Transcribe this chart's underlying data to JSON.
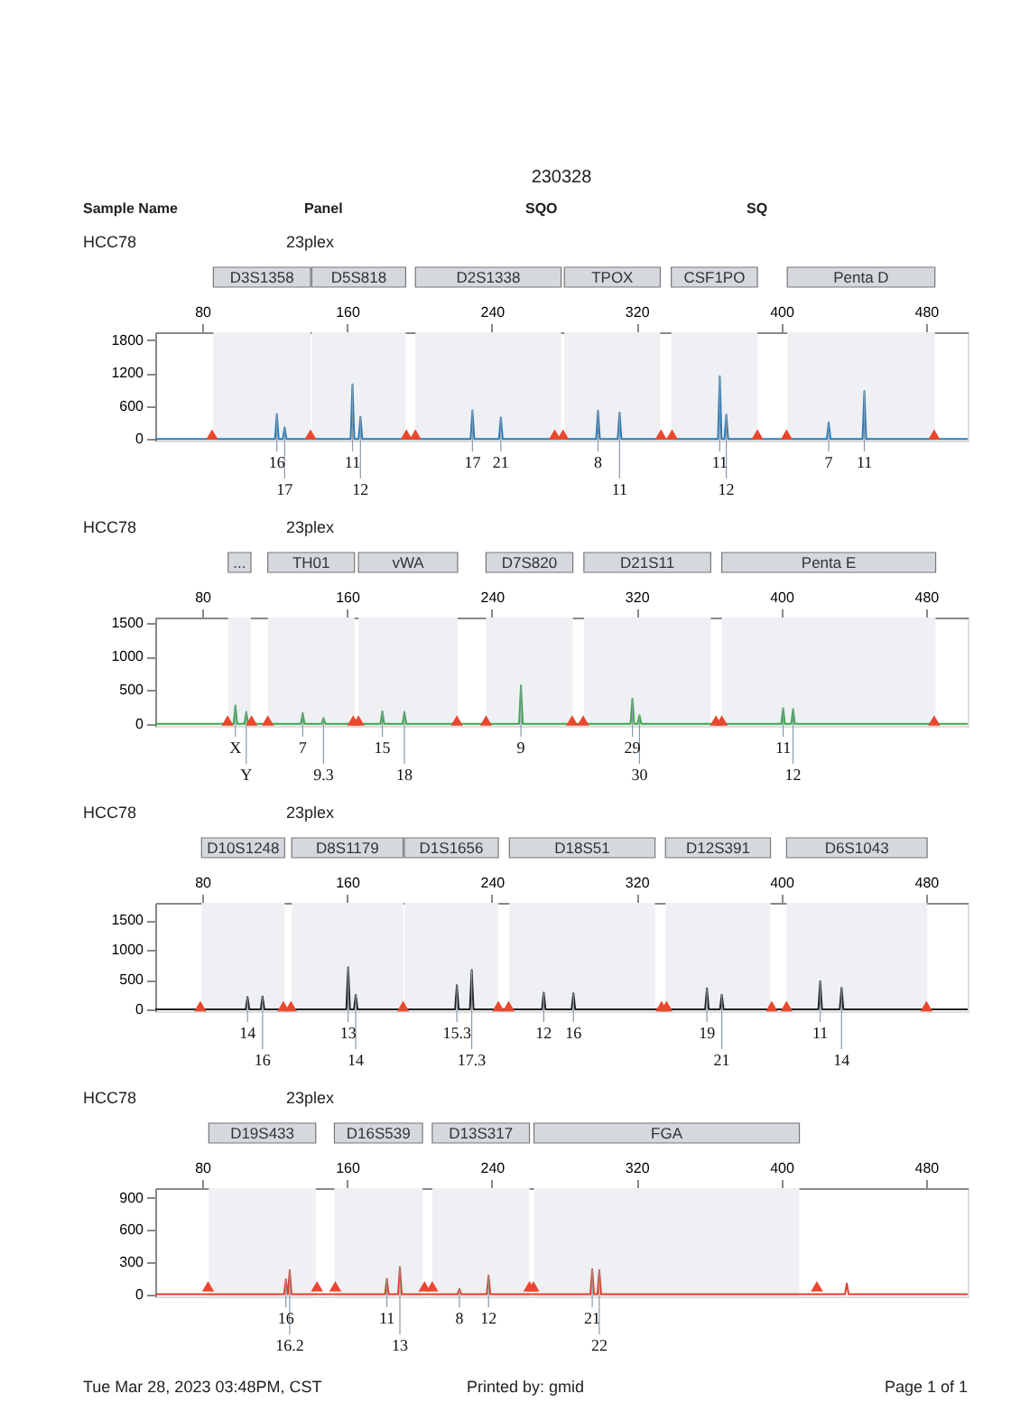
{
  "chart_data": [
    {
      "type": "line",
      "title": "HCC78",
      "subtitle": "23plex",
      "xlim": [
        54,
        503
      ],
      "xticks": [
        80,
        160,
        240,
        320,
        400,
        480
      ],
      "ylim": [
        -30,
        1940
      ],
      "yticks": [
        0,
        600,
        1200,
        1800
      ],
      "grid": false,
      "series": [
        {
          "color": "#2a7ab8",
          "x": [
            54,
            120.2,
            121.2,
            122.2,
            124.5,
            125.5,
            126.5,
            162,
            163,
            164,
            166.4,
            167.4,
            168.4,
            228.3,
            229.3,
            230.3,
            244,
            245,
            246,
            297.7,
            298.7,
            299.7,
            309.6,
            310.6,
            311.6,
            365,
            366,
            367,
            368.6,
            369.6,
            370.6,
            425.2,
            426.2,
            427.2,
            444.9,
            445.9,
            446.9,
            503
          ],
          "values": [
            0,
            0,
            450,
            0,
            0,
            210,
            0,
            0,
            990,
            0,
            0,
            400,
            0,
            0,
            520,
            0,
            0,
            390,
            0,
            0,
            510,
            0,
            0,
            480,
            0,
            0,
            1140,
            0,
            0,
            440,
            0,
            0,
            300,
            0,
            0,
            870,
            0,
            0
          ]
        },
        {
          "type": "scatter",
          "marker": "triangle",
          "color": "#e8482e",
          "x": [
            85.4,
            139.8,
            192.8,
            197.8,
            274.8,
            279.4,
            333.5,
            339.6,
            386.8,
            402.9,
            484.5
          ],
          "values": [
            80,
            80,
            80,
            80,
            80,
            80,
            80,
            80,
            80,
            80,
            80
          ]
        }
      ],
      "bands": [
        {
          "axis": "x",
          "from": 86.1,
          "to": 139.8,
          "label": "D3S1358",
          "color": "#eef0f3"
        },
        {
          "axis": "x",
          "from": 140.5,
          "to": 192.4,
          "label": "D5S818",
          "color": "#eef0f3"
        },
        {
          "axis": "x",
          "from": 197.8,
          "to": 278.3,
          "label": "D2S1338",
          "color": "#eef0f3"
        },
        {
          "axis": "x",
          "from": 280.1,
          "to": 333.1,
          "label": "TPOX",
          "color": "#eef0f3"
        },
        {
          "axis": "x",
          "from": 339.2,
          "to": 386.8,
          "label": "CSF1PO",
          "color": "#eef0f3"
        },
        {
          "axis": "x",
          "from": 403.3,
          "to": 484.9,
          "label": "Penta D",
          "color": "#eef0f3"
        }
      ],
      "annotations": [
        "230328",
        "Sample Name",
        "Panel",
        "SQO",
        "SQ",
        {
          "text": "16",
          "x": 121.2,
          "y": 450
        },
        {
          "text": "17",
          "x": 125.5,
          "y": 210
        },
        {
          "text": "11",
          "x": 163,
          "y": 990
        },
        {
          "text": "12",
          "x": 167.4,
          "y": 400
        },
        {
          "text": "17",
          "x": 229.3,
          "y": 520
        },
        {
          "text": "21",
          "x": 245,
          "y": 390
        },
        {
          "text": "8",
          "x": 298.7,
          "y": 510
        },
        {
          "text": "11",
          "x": 310.6,
          "y": 480
        },
        {
          "text": "11",
          "x": 366,
          "y": 1140
        },
        {
          "text": "12",
          "x": 369.6,
          "y": 440
        },
        {
          "text": "7",
          "x": 426.2,
          "y": 300
        },
        {
          "text": "11",
          "x": 445.9,
          "y": 870
        }
      ]
    },
    {
      "type": "line",
      "title": "HCC78",
      "subtitle": "23plex",
      "xlim": [
        54,
        503
      ],
      "xticks": [
        80,
        160,
        240,
        320,
        400,
        480
      ],
      "ylim": [
        -30,
        1580
      ],
      "yticks": [
        0,
        500,
        1000,
        1500
      ],
      "grid": false,
      "series": [
        {
          "color": "#3aa84a",
          "x": [
            54,
            97.3,
            98.3,
            99.3,
            103.3,
            104.3,
            105.3,
            134.5,
            135.5,
            136.5,
            146,
            147,
            148,
            178.5,
            179.5,
            180.5,
            190.7,
            191.7,
            192.7,
            255.1,
            256.1,
            257.1,
            316.7,
            317.7,
            318.7,
            320.6,
            321.6,
            322.6,
            400,
            401,
            402,
            405.5,
            406.5,
            407.5,
            503
          ],
          "values": [
            0,
            0,
            273,
            0,
            0,
            177,
            0,
            0,
            160,
            0,
            0,
            88,
            0,
            0,
            185,
            0,
            0,
            177,
            0,
            0,
            570,
            0,
            0,
            377,
            0,
            0,
            128,
            0,
            0,
            233,
            0,
            0,
            217,
            0,
            0
          ]
        },
        {
          "type": "scatter",
          "marker": "triangle",
          "color": "#e8482e",
          "x": [
            94,
            107.2,
            116.2,
            163.4,
            166.3,
            220.7,
            236.8,
            284.4,
            290.5,
            363.9,
            367.1,
            484.5
          ],
          "values": [
            50,
            50,
            50,
            50,
            50,
            50,
            50,
            50,
            50,
            50,
            50,
            50
          ]
        }
      ],
      "bands": [
        {
          "axis": "x",
          "from": 94.3,
          "to": 106.9,
          "label": "...",
          "color": "#eef0f3"
        },
        {
          "axis": "x",
          "from": 116.2,
          "to": 164.1,
          "label": "TH01",
          "color": "#eef0f3"
        },
        {
          "axis": "x",
          "from": 166.3,
          "to": 221.1,
          "label": "vWA",
          "color": "#eef0f3"
        },
        {
          "axis": "x",
          "from": 236.8,
          "to": 284.8,
          "label": "D7S820",
          "color": "#eef0f3"
        },
        {
          "axis": "x",
          "from": 290.9,
          "to": 361,
          "label": "D21S11",
          "color": "#eef0f3"
        },
        {
          "axis": "x",
          "from": 367.1,
          "to": 485.3,
          "label": "Penta E",
          "color": "#eef0f3"
        }
      ],
      "annotations": [
        {
          "text": "X",
          "x": 98.3,
          "y": 273
        },
        {
          "text": "Y",
          "x": 104.3,
          "y": 177
        },
        {
          "text": "7",
          "x": 135.5,
          "y": 160
        },
        {
          "text": "9.3",
          "x": 147,
          "y": 88
        },
        {
          "text": "15",
          "x": 179.5,
          "y": 185
        },
        {
          "text": "18",
          "x": 191.7,
          "y": 177
        },
        {
          "text": "9",
          "x": 256.1,
          "y": 570
        },
        {
          "text": "29",
          "x": 317.7,
          "y": 377
        },
        {
          "text": "30",
          "x": 321.6,
          "y": 128
        },
        {
          "text": "11",
          "x": 401,
          "y": 233
        },
        {
          "text": "12",
          "x": 406.5,
          "y": 217
        }
      ]
    },
    {
      "type": "line",
      "title": "HCC78",
      "subtitle": "23plex",
      "xlim": [
        54,
        503
      ],
      "xticks": [
        80,
        160,
        240,
        320,
        400,
        480
      ],
      "ylim": [
        -30,
        1790
      ],
      "yticks": [
        0,
        500,
        1000,
        1500
      ],
      "grid": false,
      "series": [
        {
          "color": "#222222",
          "x": [
            54,
            104,
            105,
            106,
            112.3,
            113.3,
            114.3,
            159.6,
            160.6,
            161.6,
            163.8,
            164.8,
            165.8,
            219.7,
            220.7,
            221.7,
            227.9,
            228.9,
            229.9,
            267.7,
            268.7,
            269.7,
            284.1,
            285.1,
            286.1,
            357.9,
            358.9,
            359.9,
            366.1,
            367.1,
            368.1,
            420.5,
            421.5,
            422.5,
            432.3,
            433.3,
            434.3,
            503
          ],
          "values": [
            0,
            0,
            208,
            0,
            0,
            217,
            0,
            0,
            705,
            0,
            0,
            244,
            0,
            0,
            407,
            0,
            0,
            660,
            0,
            0,
            280,
            0,
            0,
            271,
            0,
            0,
            353,
            0,
            0,
            244,
            0,
            0,
            470,
            0,
            0,
            362,
            0,
            0
          ]
        },
        {
          "type": "scatter",
          "marker": "triangle",
          "color": "#e8482e",
          "x": [
            78.9,
            124.8,
            129,
            191,
            243.6,
            249.3,
            333.8,
            336.6,
            394.7,
            402.9,
            480.2
          ],
          "values": [
            55,
            55,
            55,
            55,
            55,
            55,
            55,
            55,
            55,
            55,
            55
          ]
        }
      ],
      "bands": [
        {
          "axis": "x",
          "from": 79.6,
          "to": 125.5,
          "label": "D10S1248",
          "color": "#eef0f3"
        },
        {
          "axis": "x",
          "from": 129.4,
          "to": 191,
          "label": "D8S1179",
          "color": "#eef0f3"
        },
        {
          "axis": "x",
          "from": 191.7,
          "to": 243.6,
          "label": "D1S1656",
          "color": "#eef0f3"
        },
        {
          "axis": "x",
          "from": 249.7,
          "to": 330.2,
          "label": "D18S51",
          "color": "#eef0f3"
        },
        {
          "axis": "x",
          "from": 336,
          "to": 394,
          "label": "D12S391",
          "color": "#eef0f3"
        },
        {
          "axis": "x",
          "from": 402.9,
          "to": 480.6,
          "label": "D6S1043",
          "color": "#eef0f3"
        }
      ],
      "annotations": [
        {
          "text": "14",
          "x": 105,
          "y": 208
        },
        {
          "text": "16",
          "x": 113.3,
          "y": 217
        },
        {
          "text": "13",
          "x": 160.6,
          "y": 705
        },
        {
          "text": "14",
          "x": 164.8,
          "y": 244
        },
        {
          "text": "15.3",
          "x": 220.7,
          "y": 407
        },
        {
          "text": "17.3",
          "x": 228.9,
          "y": 660
        },
        {
          "text": "12",
          "x": 268.7,
          "y": 280
        },
        {
          "text": "16",
          "x": 285.1,
          "y": 271
        },
        {
          "text": "19",
          "x": 358.9,
          "y": 353
        },
        {
          "text": "21",
          "x": 367.1,
          "y": 244
        },
        {
          "text": "11",
          "x": 421.5,
          "y": 470
        },
        {
          "text": "14",
          "x": 433.3,
          "y": 362
        }
      ]
    },
    {
      "type": "line",
      "title": "HCC78",
      "subtitle": "23plex",
      "xlim": [
        54,
        503
      ],
      "xticks": [
        80,
        160,
        240,
        320,
        400,
        480
      ],
      "ylim": [
        -20,
        990
      ],
      "yticks": [
        0,
        300,
        600,
        900
      ],
      "grid": false,
      "series": [
        {
          "color": "#e0402a",
          "x": [
            54,
            125.2,
            126.2,
            127.2,
            127.3,
            128.3,
            129.3,
            181,
            182,
            183,
            188.2,
            189.2,
            190.2,
            221.1,
            222.1,
            223.1,
            237.2,
            238.2,
            239.2,
            294.5,
            295.5,
            296.5,
            298.4,
            299.4,
            300.4,
            435.2,
            436.2,
            437.2,
            503
          ],
          "values": [
            0,
            0,
            140,
            0,
            0,
            225,
            0,
            0,
            145,
            0,
            0,
            255,
            0,
            0,
            50,
            0,
            0,
            175,
            0,
            0,
            235,
            0,
            0,
            225,
            0,
            0,
            100,
            0,
            0
          ]
        },
        {
          "type": "scatter",
          "marker": "triangle",
          "color": "#e8482e",
          "x": [
            83.2,
            143.4,
            153.5,
            202.8,
            207.1,
            260.8,
            263,
            419.7
          ],
          "values": [
            75,
            75,
            75,
            75,
            75,
            75,
            75,
            75
          ]
        }
      ],
      "bands": [
        {
          "axis": "x",
          "from": 83.6,
          "to": 142.7,
          "label": "D19S433",
          "color": "#eef0f3"
        },
        {
          "axis": "x",
          "from": 153,
          "to": 201.7,
          "label": "D16S539",
          "color": "#eef0f3"
        },
        {
          "axis": "x",
          "from": 207.1,
          "to": 260.8,
          "label": "D13S317",
          "color": "#eef0f3"
        },
        {
          "axis": "x",
          "from": 263.3,
          "to": 410,
          "label": "FGA",
          "color": "#eef0f3"
        }
      ],
      "annotations": [
        "Tue Mar 28, 2023 03:48PM, CST",
        "Printed by: gmid",
        "Page 1 of 1",
        {
          "text": "16",
          "x": 126.2,
          "y": 140
        },
        {
          "text": "16.2",
          "x": 128.3,
          "y": 225
        },
        {
          "text": "11",
          "x": 182,
          "y": 145
        },
        {
          "text": "13",
          "x": 189.2,
          "y": 255
        },
        {
          "text": "8",
          "x": 222.1,
          "y": 50
        },
        {
          "text": "12",
          "x": 238.2,
          "y": 175
        },
        {
          "text": "21",
          "x": 295.5,
          "y": 235
        },
        {
          "text": "22",
          "x": 299.4,
          "y": 225
        }
      ]
    }
  ]
}
